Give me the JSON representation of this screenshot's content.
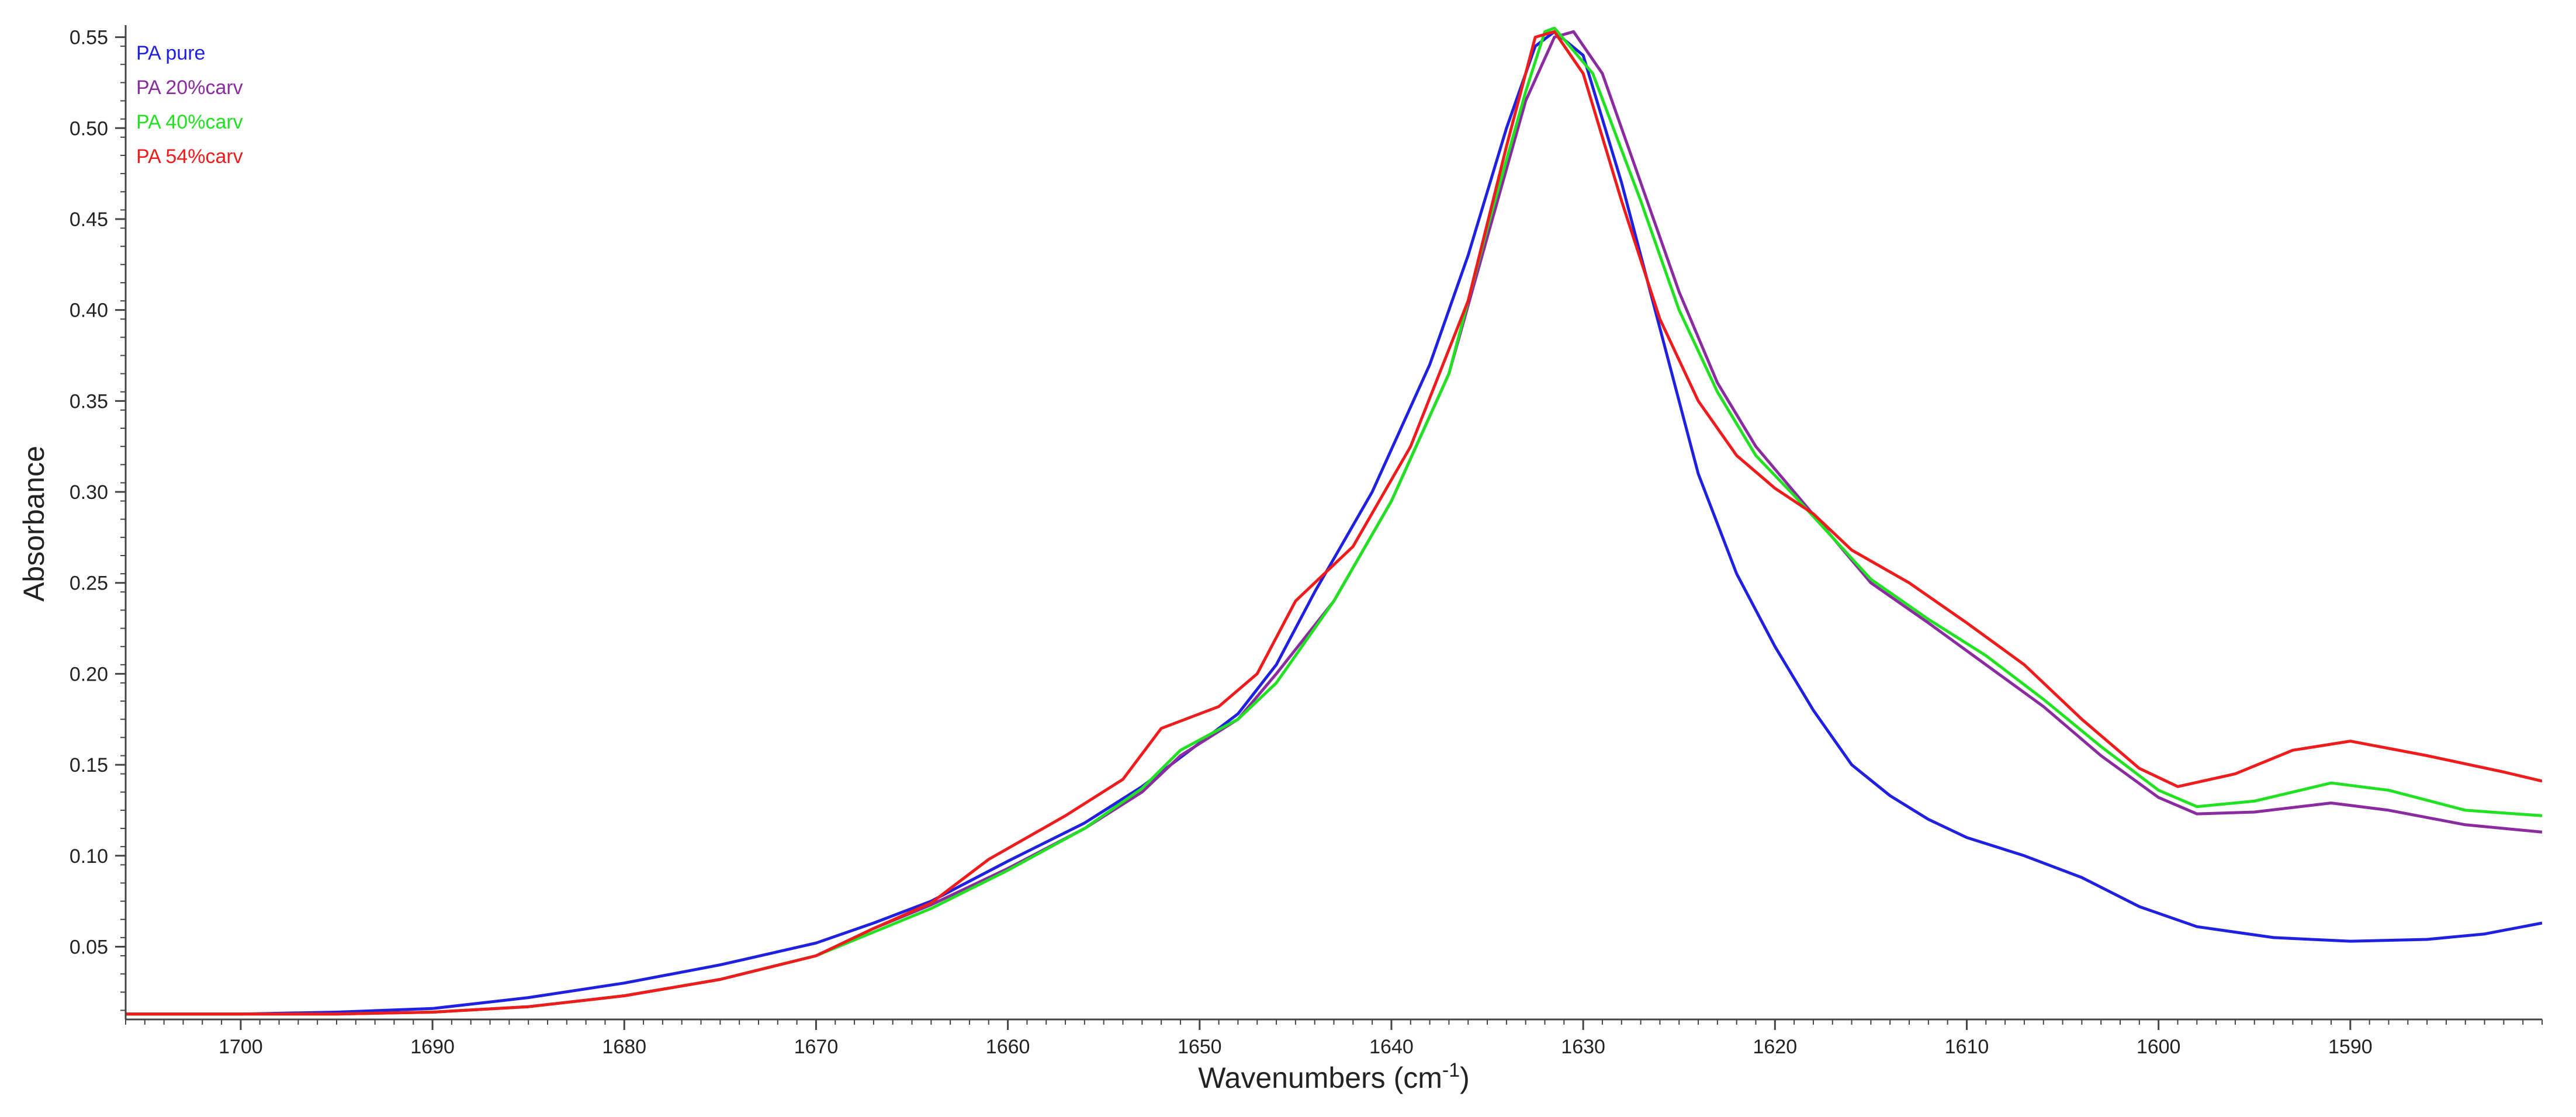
{
  "chart_data": {
    "type": "line",
    "title": "",
    "xlabel": "Wavenumbers (cm",
    "xlabel_superscript": "-1",
    "xlabel_suffix": ")",
    "ylabel": "Absorbance",
    "xlim": [
      1706,
      1580
    ],
    "x_reversed": true,
    "ylim": [
      0.01,
      0.555
    ],
    "grid": false,
    "legend_position": "top-left",
    "x_ticks": [
      1700,
      1690,
      1680,
      1670,
      1660,
      1650,
      1640,
      1630,
      1620,
      1610,
      1600,
      1590
    ],
    "y_ticks": [
      0.05,
      0.1,
      0.15,
      0.2,
      0.25,
      0.3,
      0.35,
      0.4,
      0.45,
      0.5,
      0.55
    ],
    "series": [
      {
        "name": "PA pure",
        "color": "#2020e0",
        "points": [
          [
            1706,
            0.013
          ],
          [
            1700,
            0.013
          ],
          [
            1695,
            0.014
          ],
          [
            1690,
            0.016
          ],
          [
            1685,
            0.022
          ],
          [
            1680,
            0.03
          ],
          [
            1675,
            0.04
          ],
          [
            1670,
            0.052
          ],
          [
            1667,
            0.063
          ],
          [
            1664,
            0.075
          ],
          [
            1660,
            0.097
          ],
          [
            1656,
            0.118
          ],
          [
            1653,
            0.138
          ],
          [
            1650,
            0.162
          ],
          [
            1648,
            0.178
          ],
          [
            1646,
            0.205
          ],
          [
            1644,
            0.245
          ],
          [
            1641,
            0.3
          ],
          [
            1638,
            0.37
          ],
          [
            1636,
            0.43
          ],
          [
            1634,
            0.5
          ],
          [
            1632.5,
            0.545
          ],
          [
            1631.5,
            0.553
          ],
          [
            1630,
            0.54
          ],
          [
            1628,
            0.47
          ],
          [
            1626,
            0.39
          ],
          [
            1624,
            0.31
          ],
          [
            1622,
            0.255
          ],
          [
            1620,
            0.215
          ],
          [
            1618,
            0.18
          ],
          [
            1616,
            0.15
          ],
          [
            1614,
            0.133
          ],
          [
            1612,
            0.12
          ],
          [
            1610,
            0.11
          ],
          [
            1607,
            0.1
          ],
          [
            1604,
            0.088
          ],
          [
            1601,
            0.072
          ],
          [
            1598,
            0.061
          ],
          [
            1594,
            0.055
          ],
          [
            1590,
            0.053
          ],
          [
            1586,
            0.054
          ],
          [
            1583,
            0.057
          ],
          [
            1580,
            0.063
          ]
        ]
      },
      {
        "name": "PA 20%carv",
        "color": "#8a2ca0",
        "points": [
          [
            1706,
            0.013
          ],
          [
            1700,
            0.013
          ],
          [
            1695,
            0.013
          ],
          [
            1690,
            0.014
          ],
          [
            1685,
            0.017
          ],
          [
            1680,
            0.023
          ],
          [
            1675,
            0.032
          ],
          [
            1670,
            0.045
          ],
          [
            1667,
            0.06
          ],
          [
            1664,
            0.073
          ],
          [
            1660,
            0.093
          ],
          [
            1656,
            0.115
          ],
          [
            1653,
            0.135
          ],
          [
            1651,
            0.155
          ],
          [
            1648,
            0.175
          ],
          [
            1646,
            0.2
          ],
          [
            1643,
            0.24
          ],
          [
            1640,
            0.295
          ],
          [
            1637,
            0.365
          ],
          [
            1635,
            0.44
          ],
          [
            1633,
            0.515
          ],
          [
            1631.5,
            0.55
          ],
          [
            1630.5,
            0.553
          ],
          [
            1629,
            0.53
          ],
          [
            1627,
            0.47
          ],
          [
            1625,
            0.41
          ],
          [
            1623,
            0.36
          ],
          [
            1621,
            0.325
          ],
          [
            1619,
            0.3
          ],
          [
            1617,
            0.275
          ],
          [
            1615,
            0.25
          ],
          [
            1612,
            0.228
          ],
          [
            1609,
            0.205
          ],
          [
            1606,
            0.182
          ],
          [
            1603,
            0.155
          ],
          [
            1600,
            0.132
          ],
          [
            1598,
            0.123
          ],
          [
            1595,
            0.124
          ],
          [
            1591,
            0.129
          ],
          [
            1588,
            0.125
          ],
          [
            1584,
            0.117
          ],
          [
            1580,
            0.113
          ]
        ]
      },
      {
        "name": "PA 40%carv",
        "color": "#22e022",
        "points": [
          [
            1706,
            0.013
          ],
          [
            1700,
            0.013
          ],
          [
            1695,
            0.013
          ],
          [
            1690,
            0.014
          ],
          [
            1685,
            0.017
          ],
          [
            1680,
            0.023
          ],
          [
            1675,
            0.032
          ],
          [
            1670,
            0.045
          ],
          [
            1667,
            0.058
          ],
          [
            1664,
            0.071
          ],
          [
            1660,
            0.092
          ],
          [
            1656,
            0.115
          ],
          [
            1653,
            0.137
          ],
          [
            1651,
            0.158
          ],
          [
            1648,
            0.175
          ],
          [
            1646,
            0.195
          ],
          [
            1643,
            0.24
          ],
          [
            1640,
            0.295
          ],
          [
            1637,
            0.365
          ],
          [
            1635,
            0.445
          ],
          [
            1633,
            0.52
          ],
          [
            1632,
            0.553
          ],
          [
            1631.5,
            0.555
          ],
          [
            1629.5,
            0.53
          ],
          [
            1627,
            0.46
          ],
          [
            1625,
            0.4
          ],
          [
            1623,
            0.355
          ],
          [
            1621,
            0.32
          ],
          [
            1619,
            0.298
          ],
          [
            1617,
            0.275
          ],
          [
            1615,
            0.252
          ],
          [
            1612,
            0.23
          ],
          [
            1609,
            0.21
          ],
          [
            1606,
            0.186
          ],
          [
            1603,
            0.16
          ],
          [
            1600,
            0.136
          ],
          [
            1598,
            0.127
          ],
          [
            1595,
            0.13
          ],
          [
            1591,
            0.14
          ],
          [
            1588,
            0.136
          ],
          [
            1584,
            0.125
          ],
          [
            1580,
            0.122
          ]
        ]
      },
      {
        "name": "PA 54%carv",
        "color": "#ee1c1c",
        "points": [
          [
            1706,
            0.013
          ],
          [
            1700,
            0.013
          ],
          [
            1695,
            0.013
          ],
          [
            1690,
            0.014
          ],
          [
            1685,
            0.017
          ],
          [
            1680,
            0.023
          ],
          [
            1675,
            0.032
          ],
          [
            1670,
            0.045
          ],
          [
            1667,
            0.06
          ],
          [
            1664,
            0.074
          ],
          [
            1661,
            0.098
          ],
          [
            1657,
            0.122
          ],
          [
            1654,
            0.142
          ],
          [
            1652,
            0.17
          ],
          [
            1649,
            0.182
          ],
          [
            1647,
            0.2
          ],
          [
            1645,
            0.24
          ],
          [
            1642,
            0.27
          ],
          [
            1639,
            0.325
          ],
          [
            1636,
            0.405
          ],
          [
            1634,
            0.49
          ],
          [
            1632.5,
            0.55
          ],
          [
            1631.5,
            0.553
          ],
          [
            1630,
            0.53
          ],
          [
            1628,
            0.46
          ],
          [
            1626,
            0.395
          ],
          [
            1624,
            0.35
          ],
          [
            1622,
            0.32
          ],
          [
            1620,
            0.302
          ],
          [
            1618,
            0.288
          ],
          [
            1616,
            0.268
          ],
          [
            1613,
            0.25
          ],
          [
            1610,
            0.228
          ],
          [
            1607,
            0.205
          ],
          [
            1604,
            0.175
          ],
          [
            1601,
            0.148
          ],
          [
            1599,
            0.138
          ],
          [
            1596,
            0.145
          ],
          [
            1593,
            0.158
          ],
          [
            1590,
            0.163
          ],
          [
            1586,
            0.155
          ],
          [
            1582,
            0.146
          ],
          [
            1580,
            0.141
          ]
        ]
      }
    ]
  }
}
